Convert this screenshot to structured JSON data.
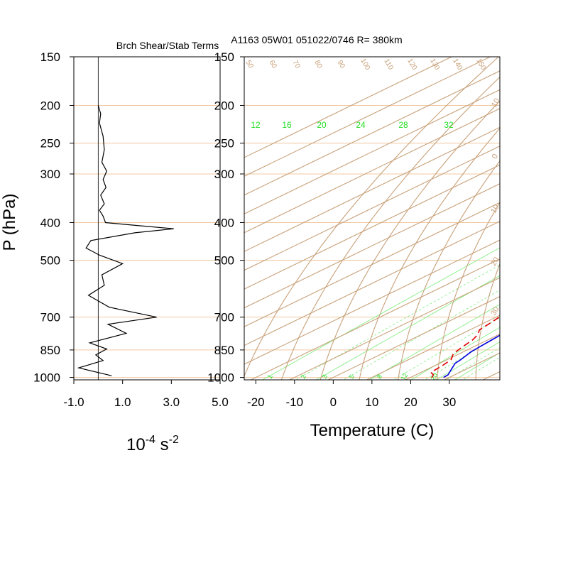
{
  "chart_data": [
    {
      "type": "line",
      "title": "Brch Shear/Stab Terms",
      "ylabel": "P (hPa)",
      "xlabel": "10-4 s -2",
      "xlabel_parts": {
        "base": "10",
        "exp1": "-4",
        "mid": " s",
        "exp2": "-2"
      },
      "x_tick_labels": [
        "-1.0",
        "1.0",
        "3.0",
        "5.0"
      ],
      "x_ticks": [
        -1.0,
        1.0,
        3.0,
        5.0
      ],
      "xlim": [
        -1.0,
        5.0
      ],
      "y_tick_labels": [
        "150",
        "200",
        "250",
        "300",
        "400",
        "500",
        "700",
        "850",
        "1000"
      ],
      "y_ticks": [
        150,
        200,
        250,
        300,
        400,
        500,
        700,
        850,
        1000
      ],
      "ylim": [
        1000,
        150
      ],
      "y_scale": "log",
      "zero_line_x": 0.0,
      "series": [
        {
          "color": "#000000",
          "points": [
            [
              0.0,
              200
            ],
            [
              0.1,
              210
            ],
            [
              0.05,
              222
            ],
            [
              0.2,
              240
            ],
            [
              0.25,
              260
            ],
            [
              0.15,
              280
            ],
            [
              0.35,
              295
            ],
            [
              0.2,
              310
            ],
            [
              0.32,
              325
            ],
            [
              0.1,
              340
            ],
            [
              0.25,
              358
            ],
            [
              0.05,
              372
            ],
            [
              0.2,
              385
            ],
            [
              0.3,
              400
            ],
            [
              1.6,
              407
            ],
            [
              3.1,
              415
            ],
            [
              1.5,
              425
            ],
            [
              -0.3,
              445
            ],
            [
              -0.5,
              465
            ],
            [
              0.05,
              485
            ],
            [
              1.0,
              510
            ],
            [
              0.15,
              545
            ],
            [
              0.25,
              580
            ],
            [
              -0.4,
              615
            ],
            [
              0.45,
              660
            ],
            [
              2.4,
              700
            ],
            [
              0.4,
              730
            ],
            [
              1.15,
              770
            ],
            [
              -0.35,
              815
            ],
            [
              0.35,
              845
            ],
            [
              -0.1,
              875
            ],
            [
              0.2,
              905
            ],
            [
              -0.8,
              945
            ],
            [
              0.55,
              990
            ]
          ]
        }
      ]
    },
    {
      "type": "line",
      "title": "A1163 05W01 051022/0746 R= 380km",
      "xlabel": "Temperature (C)",
      "x_tick_labels": [
        "-20",
        "-10",
        "0",
        "10",
        "20",
        "30"
      ],
      "x_ticks": [
        -20,
        -10,
        0,
        10,
        20,
        30
      ],
      "xlim": [
        -23,
        42
      ],
      "y_tick_labels": [
        "150",
        "200",
        "250",
        "300",
        "400",
        "500",
        "700",
        "850",
        "1000"
      ],
      "y_ticks": [
        150,
        200,
        250,
        300,
        400,
        500,
        700,
        850,
        1000
      ],
      "ylim": [
        1000,
        150
      ],
      "y_scale": "log",
      "skew_t": true,
      "background": {
        "isotherm_color": "#c8a17a",
        "isobar_color": "#f0c8a0",
        "mixing_ratio_color": "#88ee88",
        "label_green": "#22dd22",
        "mixing_ratio_labels_top": [
          "12",
          "16",
          "20",
          "24",
          "28",
          "32"
        ],
        "mixing_ratio_labels_bottom": [
          "1",
          "2",
          "3",
          "5",
          "8",
          "12",
          "20"
        ],
        "adiabat_labels_top": [
          "50",
          "60",
          "70",
          "80",
          "90",
          "100",
          "110",
          "120",
          "130",
          "140",
          "150"
        ],
        "adiabat_labels_right": [
          "-10",
          "0",
          "10",
          "20",
          "30"
        ]
      },
      "series": [
        {
          "name": "",
          "color": "#0000dd",
          "style": "solid",
          "temperature_points": [
            [
              28.5,
              1000
            ],
            [
              28.3,
              985
            ],
            [
              26.0,
              950
            ],
            [
              24.0,
              920
            ],
            [
              23.5,
              900
            ],
            [
              22.0,
              860
            ],
            [
              21.5,
              830
            ],
            [
              21.0,
              800
            ],
            [
              20.5,
              770
            ],
            [
              19.8,
              745
            ],
            [
              19.5,
              720
            ],
            [
              19.0,
              700
            ],
            [
              19.0,
              680
            ],
            [
              16.5,
              640
            ],
            [
              12.5,
              600
            ],
            [
              9.5,
              560
            ],
            [
              5.5,
              520
            ],
            [
              2.5,
              490
            ],
            [
              0.5,
              460
            ],
            [
              -1.5,
              445
            ],
            [
              -1.5,
              425
            ],
            [
              -2.0,
              410
            ],
            [
              -4.0,
              390
            ],
            [
              -7.0,
              365
            ],
            [
              -10.5,
              340
            ],
            [
              -14.0,
              315
            ],
            [
              -17.5,
              292
            ],
            [
              -21.0,
              270
            ],
            [
              -26.0,
              245
            ],
            [
              -31.0,
              220
            ],
            [
              -37.0,
              195
            ]
          ]
        },
        {
          "name": "",
          "color": "#dd0000",
          "style": "dashed",
          "temperature_points": [
            [
              25.5,
              1000
            ],
            [
              24.5,
              985
            ],
            [
              22.5,
              970
            ],
            [
              22.0,
              935
            ],
            [
              21.0,
              900
            ],
            [
              18.5,
              870
            ],
            [
              17.5,
              845
            ],
            [
              16.0,
              800
            ],
            [
              14.5,
              775
            ],
            [
              12.5,
              755
            ],
            [
              11.5,
              720
            ],
            [
              10.5,
              690
            ],
            [
              9.0,
              665
            ],
            [
              8.5,
              640
            ],
            [
              5.5,
              625
            ],
            [
              5.0,
              605
            ],
            [
              7.5,
              595
            ],
            [
              8.5,
              575
            ],
            [
              7.0,
              550
            ],
            [
              4.5,
              530
            ],
            [
              2.5,
              505
            ],
            [
              0.5,
              480
            ],
            [
              -1.0,
              455
            ],
            [
              -2.5,
              432
            ],
            [
              -7.5,
              428
            ],
            [
              -9.5,
              415
            ],
            [
              -12.0,
              408
            ],
            [
              -18.0,
              390
            ],
            [
              -24.0,
              375
            ],
            [
              -27.5,
              362
            ],
            [
              -27.5,
              350
            ],
            [
              -31.5,
              338
            ],
            [
              -34.0,
              320
            ],
            [
              -38.5,
              305
            ],
            [
              -43.5,
              292
            ],
            [
              -44.0,
              285
            ],
            [
              -38.0,
              278
            ],
            [
              -32.0,
              270
            ],
            [
              -30.0,
              258
            ],
            [
              -30.0,
              248
            ],
            [
              -32.0,
              240
            ],
            [
              -33.0,
              232
            ]
          ]
        }
      ]
    }
  ]
}
